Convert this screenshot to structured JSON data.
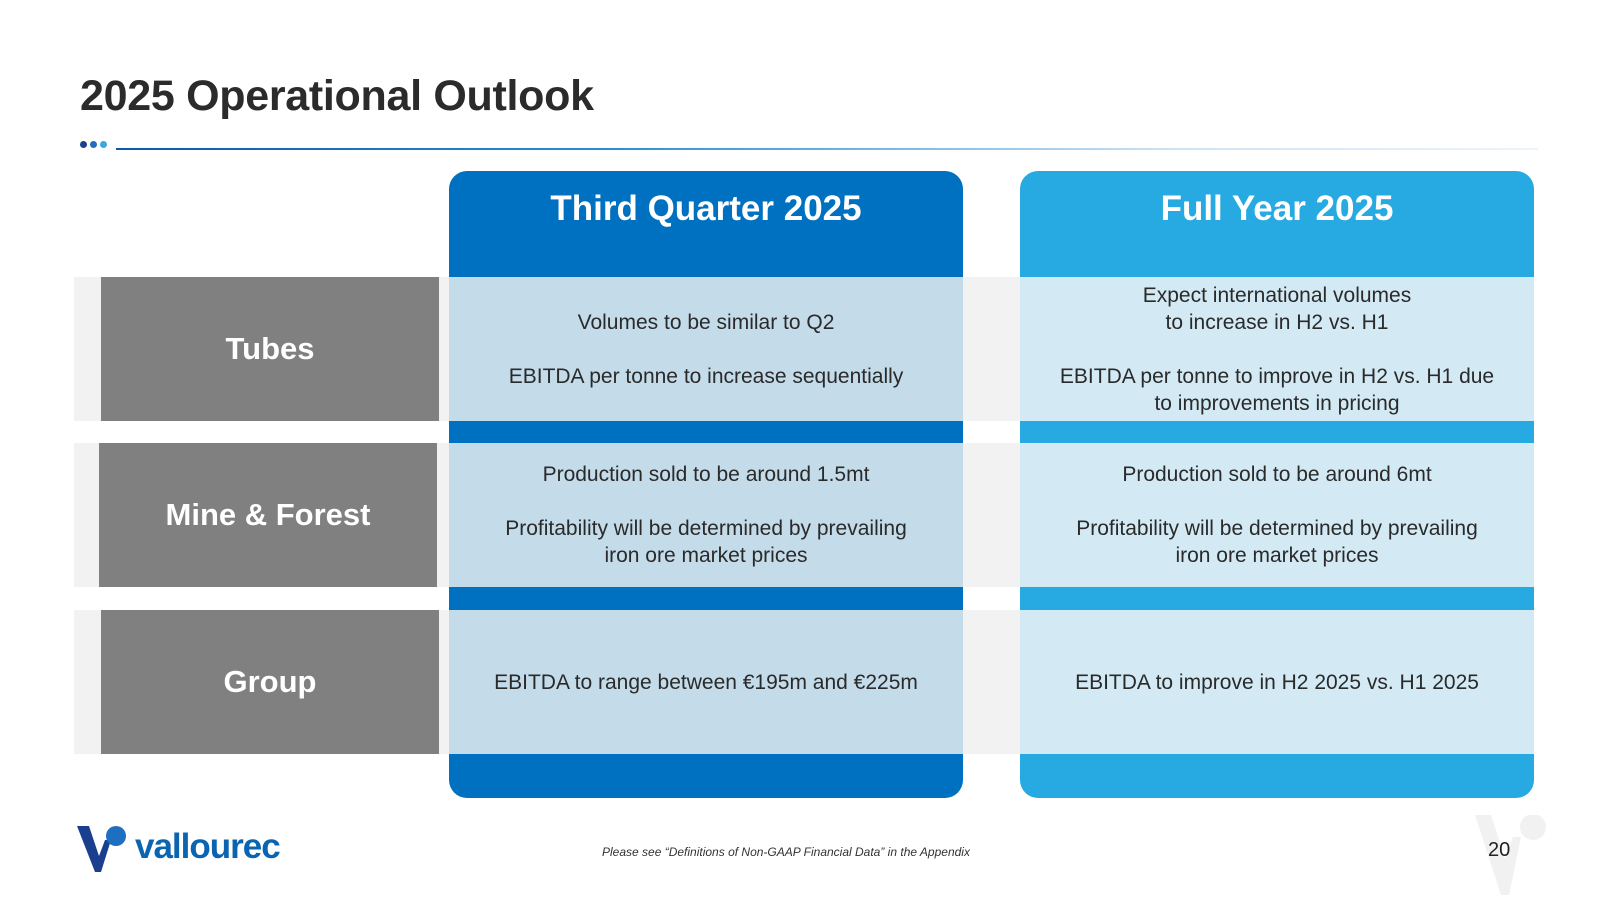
{
  "title": "2025 Operational Outlook",
  "colors": {
    "q3": "#0070c0",
    "fy": "#27a9e1",
    "label_bg": "#808080"
  },
  "columns": {
    "q3": {
      "heading": "Third Quarter 2025"
    },
    "fy": {
      "heading": "Full Year 2025"
    }
  },
  "rows": [
    {
      "label": "Tubes",
      "q3": [
        "Volumes to be similar to Q2",
        "",
        "EBITDA per tonne to increase sequentially"
      ],
      "fy": [
        "Expect international volumes",
        "to increase in H2 vs. H1",
        "",
        "EBITDA per tonne to improve in H2 vs. H1 due",
        "to improvements in pricing"
      ]
    },
    {
      "label": "Mine & Forest",
      "q3": [
        "Production sold to be around 1.5mt",
        "",
        "Profitability will be determined by prevailing",
        "iron ore market prices"
      ],
      "fy": [
        "Production sold to be around 6mt",
        "",
        "Profitability will be determined by prevailing",
        "iron ore market prices"
      ]
    },
    {
      "label": "Group",
      "q3": [
        "EBITDA to range between €195m and €225m"
      ],
      "fy": [
        "EBITDA to improve in H2 2025 vs. H1 2025"
      ]
    }
  ],
  "footer": {
    "logo_text": "vallourec",
    "logo_icon": "vallourec-logo-icon",
    "note": "Please see “Definitions of Non-GAAP Financial Data” in the Appendix",
    "page_number": "20"
  }
}
